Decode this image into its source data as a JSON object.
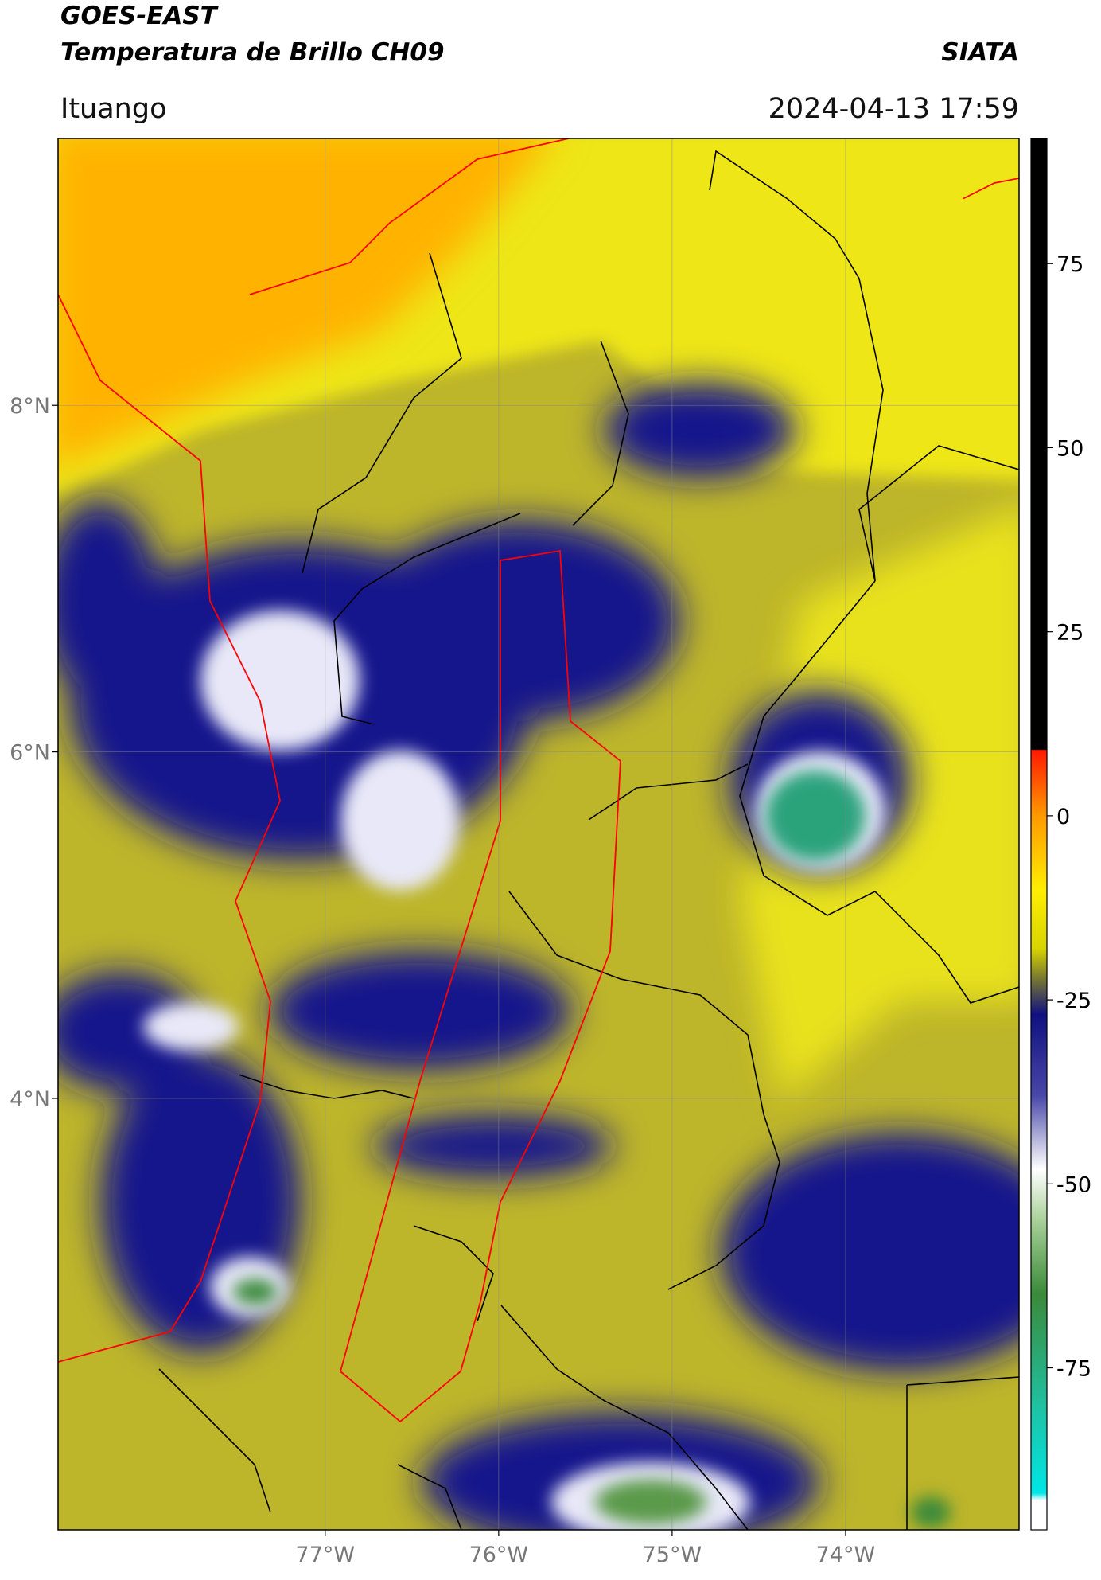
{
  "header": {
    "title": "GOES-EAST",
    "subtitle": "Temperatura de Brillo CH09",
    "source": "SIATA",
    "location": "Ituango",
    "timestamp": "2024-04-13 17:59"
  },
  "map": {
    "xlim": [
      -78.54,
      -73.0
    ],
    "ylim": [
      1.51,
      9.54
    ],
    "xticks": [
      {
        "value": -77,
        "label": "77°W"
      },
      {
        "value": -76,
        "label": "76°W"
      },
      {
        "value": -75,
        "label": "75°W"
      },
      {
        "value": -74,
        "label": "74°W"
      }
    ],
    "yticks": [
      {
        "value": 8,
        "label": "8°N"
      },
      {
        "value": 6,
        "label": "6°N"
      },
      {
        "value": 4,
        "label": "4°N"
      }
    ],
    "grid": true
  },
  "colorbar": {
    "lim": [
      -97,
      92
    ],
    "ticks": [
      75,
      50,
      25,
      0,
      -25,
      -50,
      -75
    ],
    "stops": [
      {
        "value": 92,
        "color": "#000000"
      },
      {
        "value": 9,
        "color": "#000000"
      },
      {
        "value": 8.9,
        "color": "#ff1a00"
      },
      {
        "value": 0,
        "color": "#ff9900"
      },
      {
        "value": -10,
        "color": "#ffee00"
      },
      {
        "value": -18,
        "color": "#d8d400"
      },
      {
        "value": -22,
        "color": "#7a7a30"
      },
      {
        "value": -27,
        "color": "#101080"
      },
      {
        "value": -38,
        "color": "#4848a8"
      },
      {
        "value": -48,
        "color": "#ffffff"
      },
      {
        "value": -55,
        "color": "#a8d098"
      },
      {
        "value": -65,
        "color": "#3a8a3a"
      },
      {
        "value": -80,
        "color": "#20c0a0"
      },
      {
        "value": -92,
        "color": "#00e6e6"
      },
      {
        "value": -93,
        "color": "#ffffff"
      },
      {
        "value": -97,
        "color": "#ffffff"
      }
    ]
  }
}
